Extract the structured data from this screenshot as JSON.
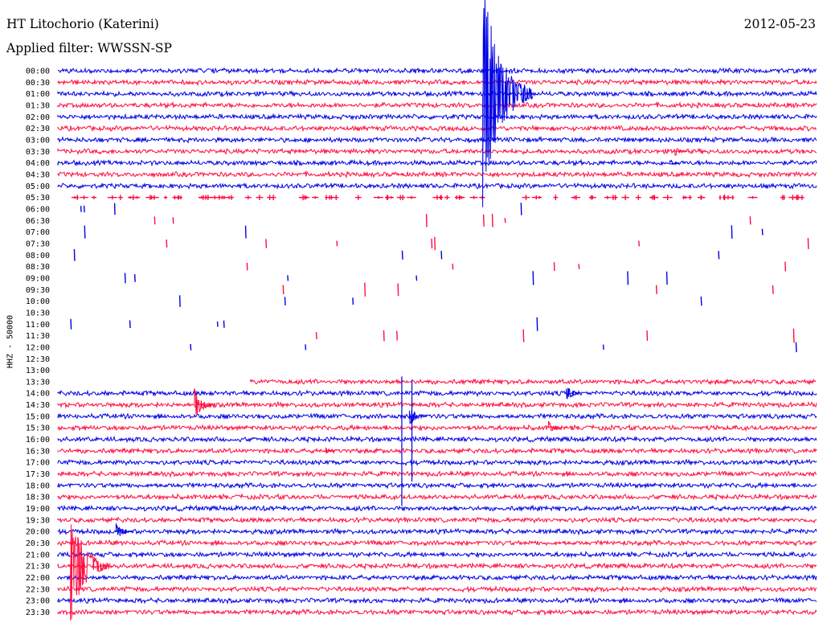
{
  "header": {
    "station": "HT Litochorio (Katerini)",
    "filter": "Applied filter: WWSSN-SP",
    "date": "2012-05-23"
  },
  "chart_data": {
    "type": "line",
    "title": "HT Litochorio (Katerini)",
    "subtitle": "Applied filter: WWSSN-SP",
    "date": "2012-05-23",
    "ylabel": "HHZ - 50000",
    "row_interval_min": 30,
    "x_range_min": [
      0,
      30
    ],
    "colors": [
      "#0000e6",
      "#ff0d40"
    ],
    "grid": false,
    "row_labels": [
      "00:00",
      "00:30",
      "01:00",
      "01:30",
      "02:00",
      "02:30",
      "03:00",
      "03:30",
      "04:00",
      "04:30",
      "05:00",
      "05:30",
      "06:00",
      "06:30",
      "07:00",
      "07:30",
      "08:00",
      "08:30",
      "09:00",
      "09:30",
      "10:00",
      "10:30",
      "11:00",
      "11:30",
      "12:00",
      "12:30",
      "13:00",
      "13:30",
      "14:00",
      "14:30",
      "15:00",
      "15:30",
      "16:00",
      "16:30",
      "17:00",
      "17:30",
      "18:00",
      "18:30",
      "19:00",
      "19:30",
      "20:00",
      "20:30",
      "21:00",
      "21:30",
      "22:00",
      "22:30",
      "23:00",
      "23:30"
    ],
    "row_trace": [
      "full",
      "full",
      "full",
      "full",
      "full",
      "full",
      "full",
      "full",
      "full",
      "full",
      "full",
      "dashed",
      "sparse",
      "sparse",
      "sparse",
      "sparse",
      "sparse",
      "sparse",
      "sparse",
      "sparse",
      "sparse",
      "none",
      "sparse",
      "sparse",
      "sparse",
      "none",
      "none",
      "partial",
      "full",
      "full",
      "full",
      "full",
      "full",
      "full",
      "full",
      "full",
      "full",
      "full",
      "full",
      "full",
      "full",
      "full",
      "full",
      "full",
      "full",
      "full",
      "full",
      "full"
    ],
    "partial_start_min": 7.6,
    "events": [
      {
        "row": "01:00",
        "minute": 16.8,
        "label": "large event",
        "amplitude_px": 150,
        "coda_min": 2.0
      },
      {
        "row": "14:00",
        "minute": 20.1,
        "label": "burst",
        "amplitude_px": 14,
        "coda_min": 0.6
      },
      {
        "row": "14:30",
        "minute": 5.4,
        "label": "burst",
        "amplitude_px": 22,
        "coda_min": 0.8
      },
      {
        "row": "15:00",
        "minute": 13.9,
        "label": "burst",
        "amplitude_px": 14,
        "coda_min": 0.7
      },
      {
        "row": "15:30",
        "minute": 19.4,
        "label": "burst",
        "amplitude_px": 10,
        "coda_min": 0.5
      },
      {
        "row": "16:30",
        "minute": 10.6,
        "label": "burst",
        "amplitude_px": 5,
        "coda_min": 0.4
      },
      {
        "row": "20:00",
        "minute": 2.3,
        "label": "burst",
        "amplitude_px": 12,
        "coda_min": 0.7
      },
      {
        "row": "21:30",
        "minute": 0.5,
        "label": "large event",
        "amplitude_px": 75,
        "coda_min": 1.6
      },
      {
        "row": "03:30",
        "minute": 24.4,
        "label": "burst",
        "amplitude_px": 7,
        "coda_min": 0.5
      },
      {
        "row": "04:00",
        "minute": 24.2,
        "label": "burst",
        "amplitude_px": 5,
        "coda_min": 0.4
      }
    ],
    "spikes": [
      {
        "row": "14:00",
        "minute": 13.6,
        "amplitude_px": 70
      },
      {
        "row": "14:00",
        "minute": 14.0,
        "amplitude_px": 55
      }
    ]
  }
}
